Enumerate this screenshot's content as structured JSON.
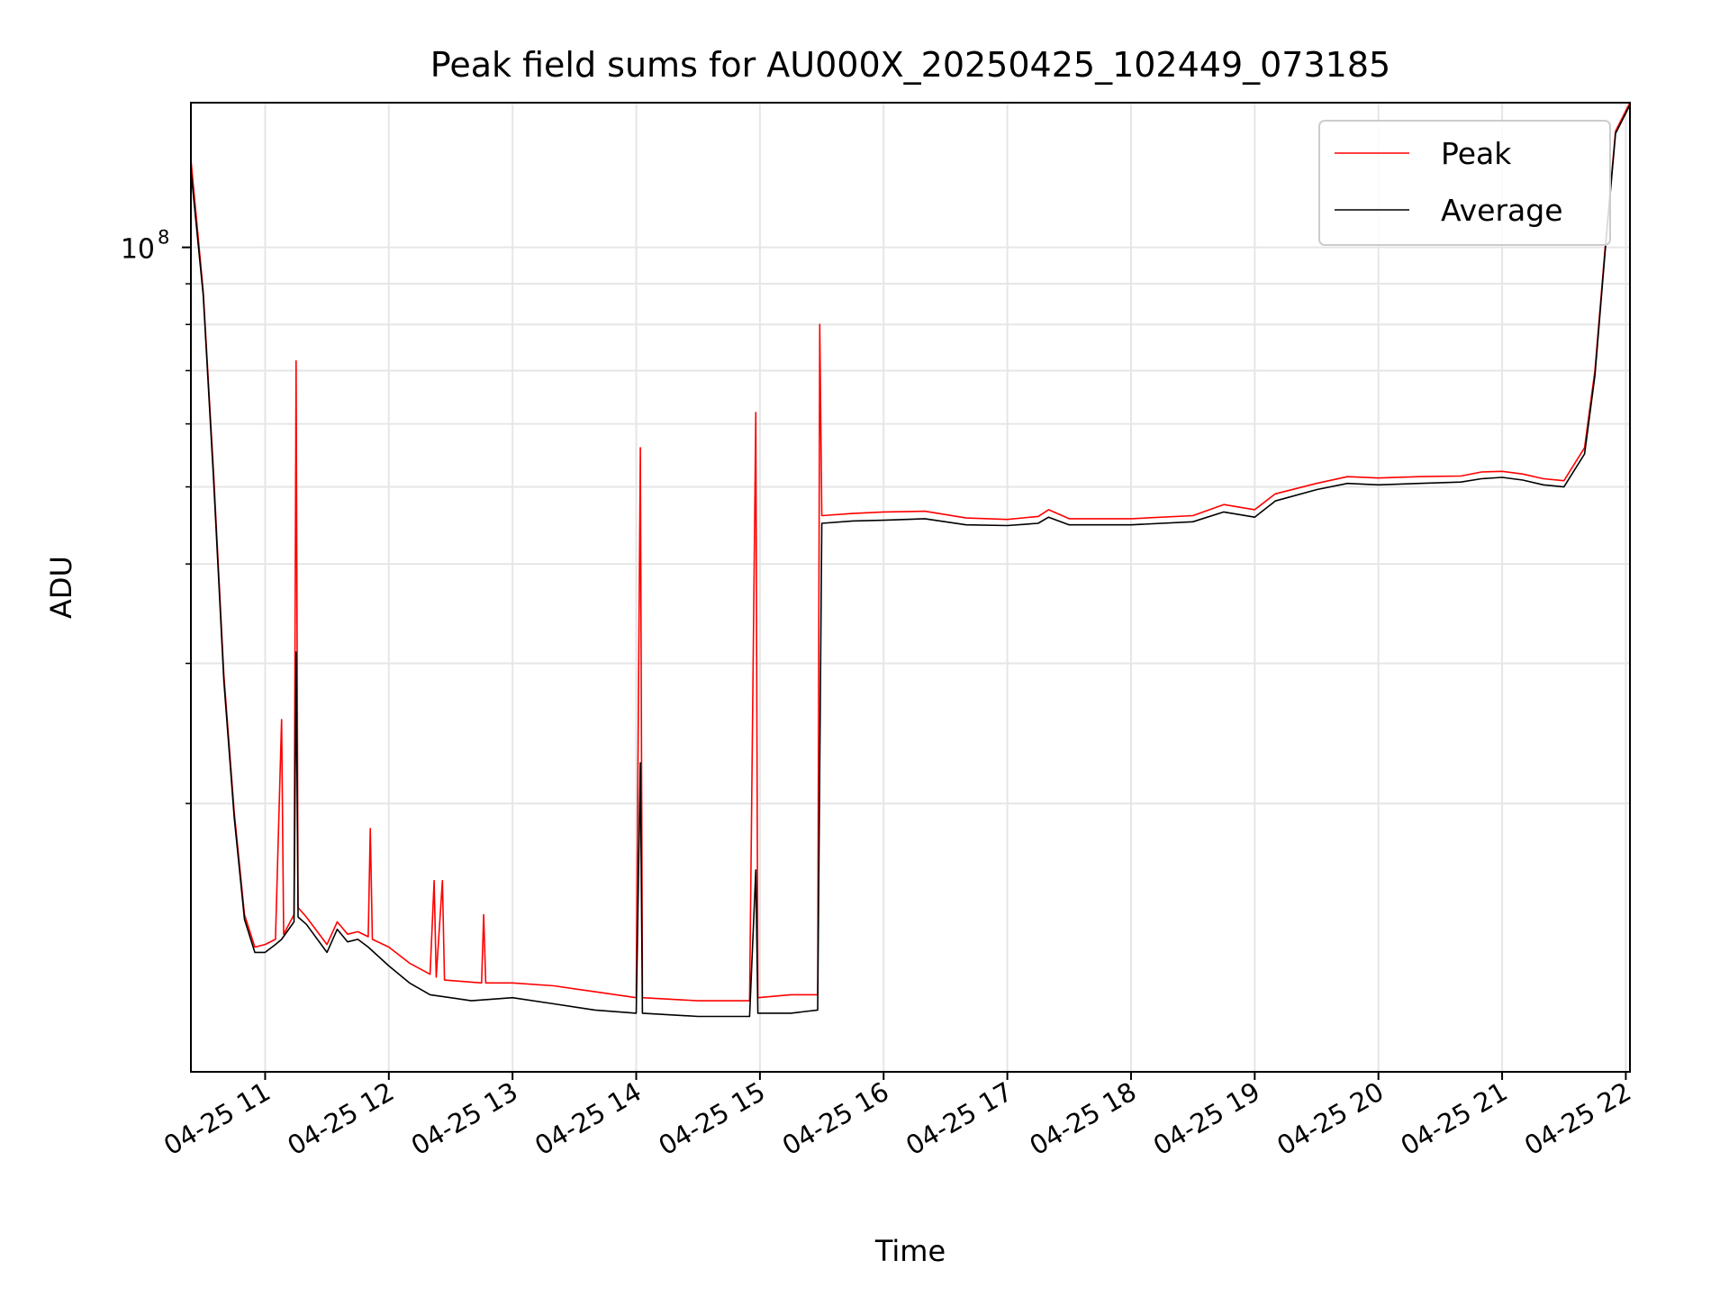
{
  "chart_data": {
    "type": "line",
    "title": "Peak field sums for AU000X_20250425_102449_073185",
    "xlabel": "Time",
    "ylabel": "ADU",
    "yscale": "log",
    "grid": true,
    "legend_position": "top-right",
    "x_range": [
      "2025-04-25T10:24",
      "2025-04-25T22:02"
    ],
    "y_range": [
      9200000,
      152000000
    ],
    "x_ticks": [
      {
        "value": "2025-04-25T11:00",
        "label": "04-25 11"
      },
      {
        "value": "2025-04-25T12:00",
        "label": "04-25 12"
      },
      {
        "value": "2025-04-25T13:00",
        "label": "04-25 13"
      },
      {
        "value": "2025-04-25T14:00",
        "label": "04-25 14"
      },
      {
        "value": "2025-04-25T15:00",
        "label": "04-25 15"
      },
      {
        "value": "2025-04-25T16:00",
        "label": "04-25 16"
      },
      {
        "value": "2025-04-25T17:00",
        "label": "04-25 17"
      },
      {
        "value": "2025-04-25T18:00",
        "label": "04-25 18"
      },
      {
        "value": "2025-04-25T19:00",
        "label": "04-25 19"
      },
      {
        "value": "2025-04-25T20:00",
        "label": "04-25 20"
      },
      {
        "value": "2025-04-25T21:00",
        "label": "04-25 21"
      },
      {
        "value": "2025-04-25T22:00",
        "label": "04-25 22"
      }
    ],
    "y_major_ticks": [
      {
        "value": 100000000,
        "label_base": "10",
        "label_exp": "8"
      }
    ],
    "y_minor_ticks": [
      20000000,
      30000000,
      40000000,
      50000000,
      60000000,
      70000000,
      80000000,
      90000000,
      200000000
    ],
    "series": [
      {
        "name": "Peak",
        "color": "#ff0000",
        "points": [
          [
            "2025-04-25T10:24",
            129000000
          ],
          [
            "2025-04-25T10:30",
            88000000
          ],
          [
            "2025-04-25T10:35",
            52000000
          ],
          [
            "2025-04-25T10:40",
            29000000
          ],
          [
            "2025-04-25T10:45",
            19500000
          ],
          [
            "2025-04-25T10:50",
            14500000
          ],
          [
            "2025-04-25T10:55",
            13200000
          ],
          [
            "2025-04-25T11:00",
            13300000
          ],
          [
            "2025-04-25T11:05",
            13500000
          ],
          [
            "2025-04-25T11:08",
            25500000
          ],
          [
            "2025-04-25T11:09",
            13700000
          ],
          [
            "2025-04-25T11:14",
            14500000
          ],
          [
            "2025-04-25T11:15",
            72000000
          ],
          [
            "2025-04-25T11:16",
            14800000
          ],
          [
            "2025-04-25T11:20",
            14400000
          ],
          [
            "2025-04-25T11:30",
            13300000
          ],
          [
            "2025-04-25T11:35",
            14200000
          ],
          [
            "2025-04-25T11:40",
            13700000
          ],
          [
            "2025-04-25T11:45",
            13800000
          ],
          [
            "2025-04-25T11:50",
            13600000
          ],
          [
            "2025-04-25T11:51",
            18600000
          ],
          [
            "2025-04-25T11:52",
            13500000
          ],
          [
            "2025-04-25T12:00",
            13200000
          ],
          [
            "2025-04-25T12:10",
            12600000
          ],
          [
            "2025-04-25T12:20",
            12200000
          ],
          [
            "2025-04-25T12:22",
            16000000
          ],
          [
            "2025-04-25T12:23",
            12100000
          ],
          [
            "2025-04-25T12:26",
            16000000
          ],
          [
            "2025-04-25T12:27",
            12000000
          ],
          [
            "2025-04-25T12:45",
            11900000
          ],
          [
            "2025-04-25T12:46",
            14500000
          ],
          [
            "2025-04-25T12:47",
            11900000
          ],
          [
            "2025-04-25T13:00",
            11900000
          ],
          [
            "2025-04-25T13:20",
            11800000
          ],
          [
            "2025-04-25T13:40",
            11600000
          ],
          [
            "2025-04-25T14:00",
            11400000
          ],
          [
            "2025-04-25T14:02",
            56000000
          ],
          [
            "2025-04-25T14:03",
            11400000
          ],
          [
            "2025-04-25T14:30",
            11300000
          ],
          [
            "2025-04-25T14:55",
            11300000
          ],
          [
            "2025-04-25T14:58",
            62000000
          ],
          [
            "2025-04-25T14:59",
            11400000
          ],
          [
            "2025-04-25T15:15",
            11500000
          ],
          [
            "2025-04-25T15:28",
            11500000
          ],
          [
            "2025-04-25T15:29",
            80000000
          ],
          [
            "2025-04-25T15:30",
            46000000
          ],
          [
            "2025-04-25T15:45",
            46300000
          ],
          [
            "2025-04-25T16:00",
            46500000
          ],
          [
            "2025-04-25T16:20",
            46600000
          ],
          [
            "2025-04-25T16:40",
            45700000
          ],
          [
            "2025-04-25T17:00",
            45500000
          ],
          [
            "2025-04-25T17:15",
            45900000
          ],
          [
            "2025-04-25T17:20",
            46800000
          ],
          [
            "2025-04-25T17:30",
            45600000
          ],
          [
            "2025-04-25T18:00",
            45600000
          ],
          [
            "2025-04-25T18:30",
            46000000
          ],
          [
            "2025-04-25T18:45",
            47500000
          ],
          [
            "2025-04-25T19:00",
            46800000
          ],
          [
            "2025-04-25T19:10",
            49000000
          ],
          [
            "2025-04-25T19:30",
            50500000
          ],
          [
            "2025-04-25T19:45",
            51500000
          ],
          [
            "2025-04-25T20:00",
            51300000
          ],
          [
            "2025-04-25T20:20",
            51500000
          ],
          [
            "2025-04-25T20:40",
            51600000
          ],
          [
            "2025-04-25T20:50",
            52200000
          ],
          [
            "2025-04-25T21:00",
            52300000
          ],
          [
            "2025-04-25T21:10",
            51900000
          ],
          [
            "2025-04-25T21:20",
            51200000
          ],
          [
            "2025-04-25T21:30",
            50900000
          ],
          [
            "2025-04-25T21:40",
            56000000
          ],
          [
            "2025-04-25T21:45",
            70000000
          ],
          [
            "2025-04-25T21:50",
            100000000
          ],
          [
            "2025-04-25T21:55",
            140000000
          ],
          [
            "2025-04-25T22:02",
            152000000
          ]
        ]
      },
      {
        "name": "Average",
        "color": "#000000",
        "points": [
          [
            "2025-04-25T10:24",
            125000000
          ],
          [
            "2025-04-25T10:30",
            87000000
          ],
          [
            "2025-04-25T10:35",
            51000000
          ],
          [
            "2025-04-25T10:40",
            28500000
          ],
          [
            "2025-04-25T10:45",
            19200000
          ],
          [
            "2025-04-25T10:50",
            14300000
          ],
          [
            "2025-04-25T10:55",
            13000000
          ],
          [
            "2025-04-25T11:00",
            13000000
          ],
          [
            "2025-04-25T11:05",
            13300000
          ],
          [
            "2025-04-25T11:08",
            13500000
          ],
          [
            "2025-04-25T11:14",
            14200000
          ],
          [
            "2025-04-25T11:15",
            31000000
          ],
          [
            "2025-04-25T11:16",
            14400000
          ],
          [
            "2025-04-25T11:20",
            14100000
          ],
          [
            "2025-04-25T11:30",
            13000000
          ],
          [
            "2025-04-25T11:35",
            13900000
          ],
          [
            "2025-04-25T11:40",
            13400000
          ],
          [
            "2025-04-25T11:45",
            13500000
          ],
          [
            "2025-04-25T11:50",
            13200000
          ],
          [
            "2025-04-25T12:00",
            12500000
          ],
          [
            "2025-04-25T12:10",
            11900000
          ],
          [
            "2025-04-25T12:20",
            11500000
          ],
          [
            "2025-04-25T12:40",
            11300000
          ],
          [
            "2025-04-25T13:00",
            11400000
          ],
          [
            "2025-04-25T13:20",
            11200000
          ],
          [
            "2025-04-25T13:40",
            11000000
          ],
          [
            "2025-04-25T14:00",
            10900000
          ],
          [
            "2025-04-25T14:02",
            22500000
          ],
          [
            "2025-04-25T14:03",
            10900000
          ],
          [
            "2025-04-25T14:30",
            10800000
          ],
          [
            "2025-04-25T14:55",
            10800000
          ],
          [
            "2025-04-25T14:58",
            16500000
          ],
          [
            "2025-04-25T14:59",
            10900000
          ],
          [
            "2025-04-25T15:15",
            10900000
          ],
          [
            "2025-04-25T15:28",
            11000000
          ],
          [
            "2025-04-25T15:30",
            45000000
          ],
          [
            "2025-04-25T15:45",
            45300000
          ],
          [
            "2025-04-25T16:00",
            45400000
          ],
          [
            "2025-04-25T16:20",
            45600000
          ],
          [
            "2025-04-25T16:40",
            44800000
          ],
          [
            "2025-04-25T17:00",
            44700000
          ],
          [
            "2025-04-25T17:15",
            45000000
          ],
          [
            "2025-04-25T17:20",
            45800000
          ],
          [
            "2025-04-25T17:30",
            44800000
          ],
          [
            "2025-04-25T18:00",
            44800000
          ],
          [
            "2025-04-25T18:30",
            45200000
          ],
          [
            "2025-04-25T18:45",
            46500000
          ],
          [
            "2025-04-25T19:00",
            45800000
          ],
          [
            "2025-04-25T19:10",
            48000000
          ],
          [
            "2025-04-25T19:30",
            49600000
          ],
          [
            "2025-04-25T19:45",
            50500000
          ],
          [
            "2025-04-25T20:00",
            50300000
          ],
          [
            "2025-04-25T20:20",
            50500000
          ],
          [
            "2025-04-25T20:40",
            50700000
          ],
          [
            "2025-04-25T20:50",
            51200000
          ],
          [
            "2025-04-25T21:00",
            51400000
          ],
          [
            "2025-04-25T21:10",
            51000000
          ],
          [
            "2025-04-25T21:20",
            50300000
          ],
          [
            "2025-04-25T21:30",
            50000000
          ],
          [
            "2025-04-25T21:40",
            55000000
          ],
          [
            "2025-04-25T21:45",
            69000000
          ],
          [
            "2025-04-25T21:50",
            99000000
          ],
          [
            "2025-04-25T21:55",
            139000000
          ],
          [
            "2025-04-25T22:02",
            151000000
          ]
        ]
      }
    ]
  }
}
